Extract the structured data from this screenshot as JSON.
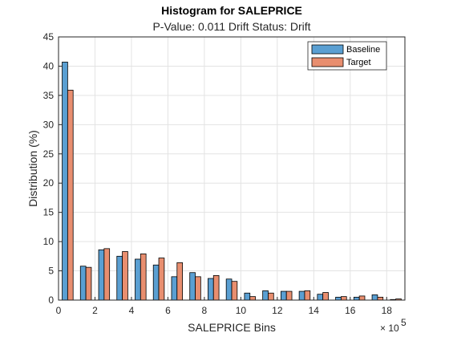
{
  "chart_data": {
    "type": "bar",
    "title": "Histogram for SALEPRICE",
    "subtitle": "P-Value: 0.011 Drift Status: Drift",
    "xlabel": "SALEPRICE Bins",
    "ylabel": "Distribution (%)",
    "x_exponent_base": "× 10",
    "x_exponent_power": "5",
    "xlim": [
      0,
      19
    ],
    "ylim": [
      0,
      45
    ],
    "xticks": [
      0,
      2,
      4,
      6,
      8,
      10,
      12,
      14,
      16,
      18
    ],
    "yticks": [
      0,
      5,
      10,
      15,
      20,
      25,
      30,
      35,
      40,
      45
    ],
    "grid": true,
    "legend_position": "top-right",
    "bin_centers": [
      0.5,
      1.5,
      2.5,
      3.5,
      4.5,
      5.5,
      6.5,
      7.5,
      8.5,
      9.5,
      10.5,
      11.5,
      12.5,
      13.5,
      14.5,
      15.5,
      16.5,
      17.5,
      18.5
    ],
    "series": [
      {
        "name": "Baseline",
        "color": "#5a9fd2",
        "values": [
          40.7,
          5.8,
          8.6,
          7.5,
          7.0,
          6.0,
          4.0,
          4.7,
          3.7,
          3.6,
          1.2,
          1.6,
          1.5,
          1.5,
          1.0,
          0.5,
          0.5,
          0.9,
          0.1
        ]
      },
      {
        "name": "Target",
        "color": "#e88e6f",
        "values": [
          35.9,
          5.6,
          8.8,
          8.3,
          7.9,
          7.2,
          6.4,
          4.0,
          4.2,
          3.2,
          0.6,
          1.2,
          1.5,
          1.6,
          1.3,
          0.6,
          0.7,
          0.5,
          0.2
        ]
      }
    ]
  }
}
